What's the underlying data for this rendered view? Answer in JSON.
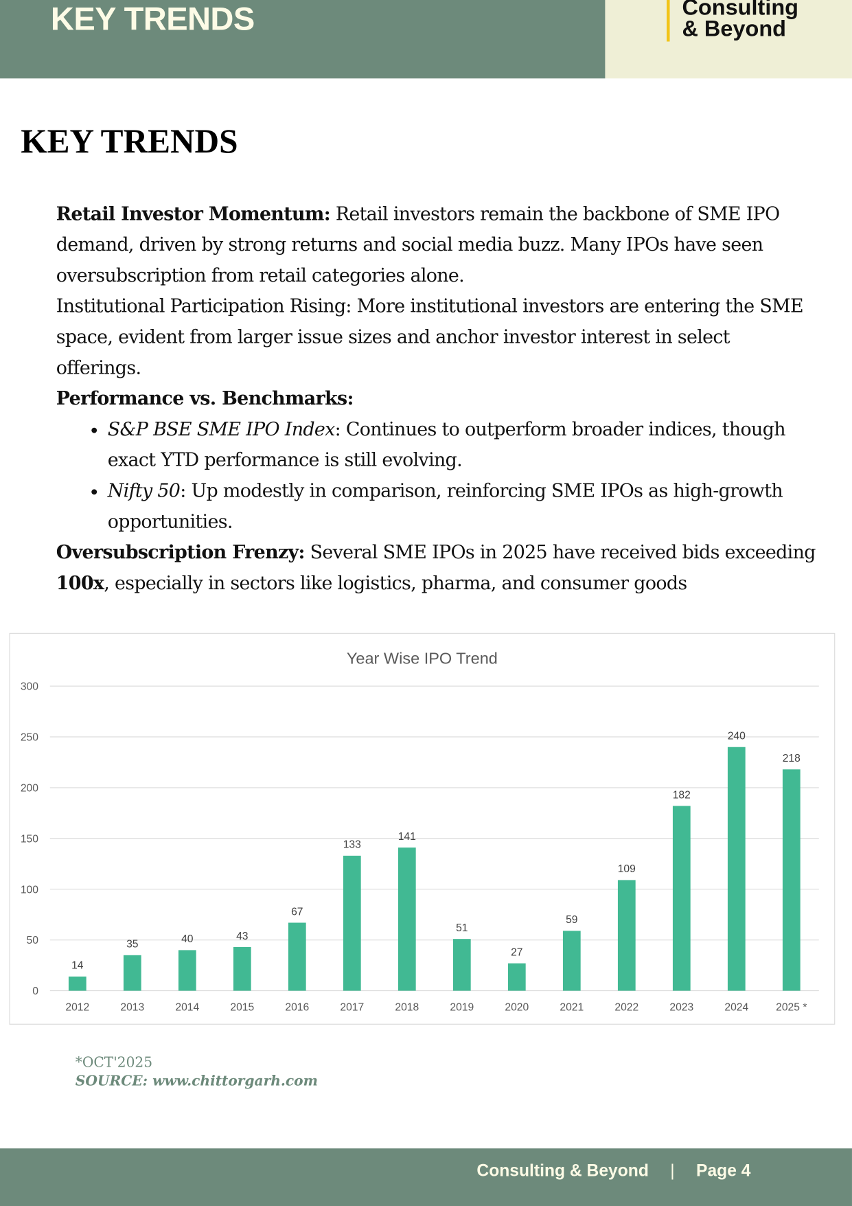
{
  "header": {
    "title": "KEY TRENDS",
    "logo_line1": "Consulting",
    "logo_line2": "& Beyond"
  },
  "page_title": "KEY TRENDS",
  "content": {
    "p1_bold": "Retail Investor Momentum:",
    "p1_text": " Retail investors remain the backbone of SME IPO demand, driven by strong returns and social media buzz. Many IPOs have seen oversubscription from retail categories alone.",
    "p2_text": "Institutional Participation Rising: More institutional investors are entering the SME space, evident from larger issue sizes and anchor investor interest in select offerings.",
    "p3_bold": "Performance vs. Benchmarks:",
    "bullets": [
      {
        "italic": "S&P BSE SME IPO Index",
        "text": ": Continues to outperform broader indices, though exact YTD performance is still evolving."
      },
      {
        "italic": "Nifty 50",
        "text": ": Up modestly in comparison, reinforcing SME IPOs as high-growth opportunities."
      }
    ],
    "p4_bold": "Oversubscription Frenzy:",
    "p4_text": " Several SME IPOs in 2025 have received bids exceeding ",
    "p4_bold2": "100x",
    "p4_text2": ", especially in sectors like logistics, pharma, and consumer goods"
  },
  "chart_data": {
    "type": "bar",
    "title": "Year Wise IPO Trend",
    "categories": [
      "2012",
      "2013",
      "2014",
      "2015",
      "2016",
      "2017",
      "2018",
      "2019",
      "2020",
      "2021",
      "2022",
      "2023",
      "2024",
      "2025 *"
    ],
    "values": [
      14,
      35,
      40,
      43,
      67,
      133,
      141,
      51,
      27,
      59,
      109,
      182,
      240,
      218
    ],
    "ylim": [
      0,
      300
    ],
    "yticks": [
      0,
      50,
      100,
      150,
      200,
      250,
      300
    ],
    "grid": true,
    "bar_color": "#41b993",
    "data_labels": true
  },
  "notes": {
    "footnote": "*OCT'2025",
    "source": "SOURCE: www.chittorgarh.com"
  },
  "footer": {
    "brand": "Consulting & Beyond",
    "separator": "|",
    "page": "Page 4"
  },
  "colors": {
    "brand_green": "#6d8a7b",
    "cream": "#efefd6",
    "accent_yellow": "#f2c418"
  }
}
